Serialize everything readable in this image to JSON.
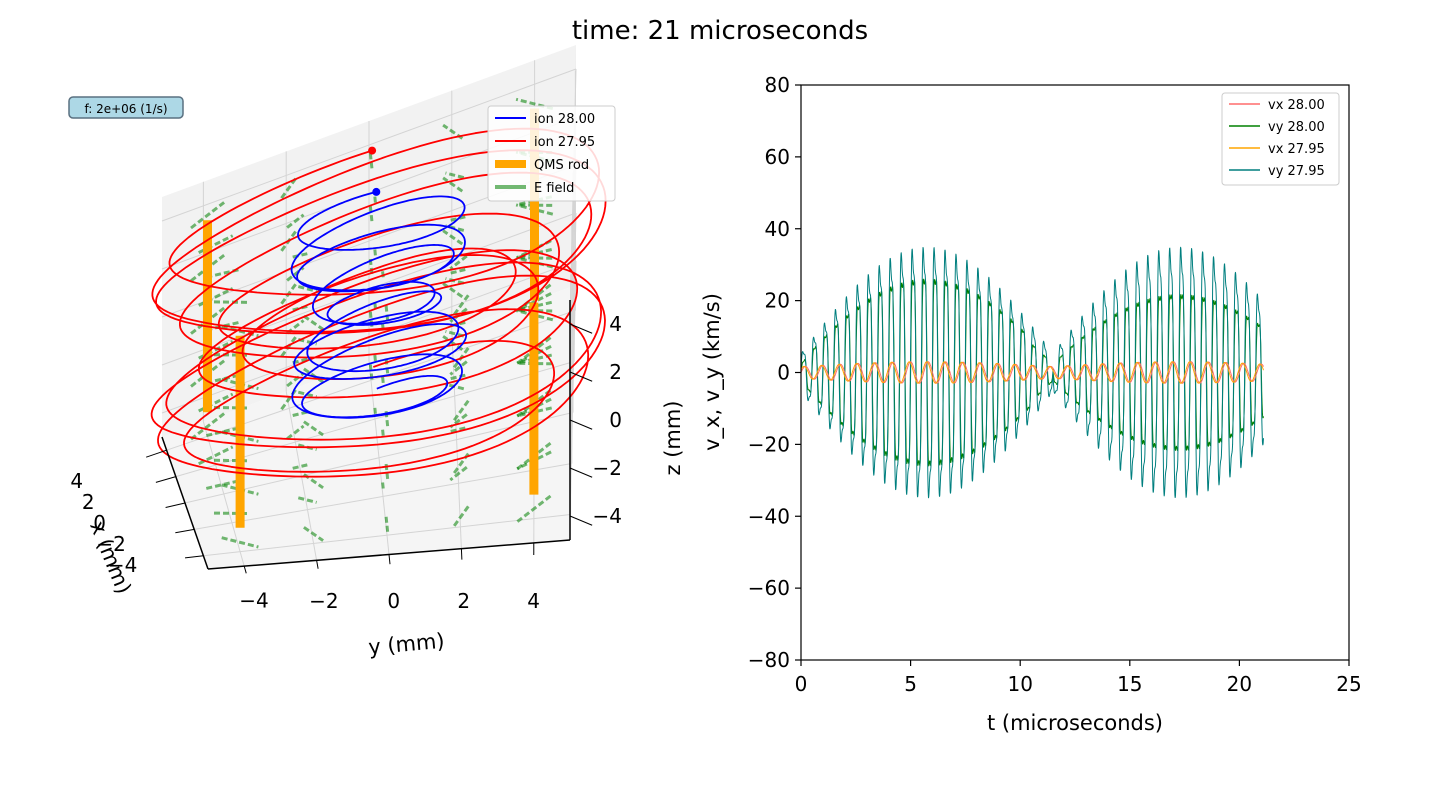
{
  "figure": {
    "title": "time: 21 microseconds",
    "info_box": "f: 2e+06 (1/s)"
  },
  "chart_data": [
    {
      "type": "line",
      "projection": "3d",
      "xlabel": "x (mm)",
      "ylabel": "y (mm)",
      "zlabel": "z (mm)",
      "xlim": [
        -5,
        5
      ],
      "ylim": [
        -5,
        5
      ],
      "zlim": [
        -5,
        5
      ],
      "xticks": [
        "−4",
        "−2",
        "0",
        "2",
        "4"
      ],
      "yticks": [
        "−4",
        "−2",
        "0",
        "2",
        "4"
      ],
      "zticks": [
        "−4",
        "−2",
        "0",
        "2",
        "4"
      ],
      "grid": true,
      "legend_position": "top-right",
      "legend": [
        {
          "label": "ion 28.00",
          "color": "#0000ff",
          "style": "line"
        },
        {
          "label": "ion 27.95",
          "color": "#ff0000",
          "style": "line"
        },
        {
          "label": "QMS rod",
          "color": "#ffa500",
          "style": "thick"
        },
        {
          "label": "E field",
          "color": "#008000",
          "style": "faded"
        }
      ],
      "rods": [
        {
          "x": -4,
          "y": -4,
          "z": [
            -4,
            4
          ]
        },
        {
          "x": 4,
          "y": -4,
          "z": [
            -4,
            4
          ]
        },
        {
          "x": -4,
          "y": 4,
          "z": [
            -4,
            4
          ]
        },
        {
          "x": 4,
          "y": 4,
          "z": [
            -4,
            4
          ]
        }
      ],
      "series": [
        {
          "name": "ion 28.00",
          "color": "#0000ff",
          "z_range": [
            -3,
            5
          ],
          "turns": 9,
          "amplitude_mm": [
            2.5,
            1.5
          ]
        },
        {
          "name": "ion 27.95",
          "color": "#ff0000",
          "z_range": [
            -3.5,
            5
          ],
          "turns": 11,
          "amplitude_mm": [
            6.5,
            1.2
          ]
        }
      ]
    },
    {
      "type": "line",
      "xlabel": "t (microseconds)",
      "ylabel": "v_x, v_y (km/s)",
      "xlim": [
        0,
        25
      ],
      "ylim": [
        -80,
        80
      ],
      "xticks": [
        "0",
        "5",
        "10",
        "15",
        "20",
        "25"
      ],
      "yticks": [
        "80",
        "60",
        "40",
        "20",
        "0",
        "−20",
        "−40",
        "−60",
        "−80"
      ],
      "grid": false,
      "legend_position": "top-right",
      "t_end": 21.1,
      "series": [
        {
          "name": "vx 28.00",
          "color": "#ff6b6b",
          "amplitude": 3,
          "beat_period": 11.5,
          "osc_period": 0.5
        },
        {
          "name": "vy 28.00",
          "color": "#008000",
          "amplitude": 30,
          "beat_period": 11.5,
          "osc_period": 0.5
        },
        {
          "name": "vx 27.95",
          "color": "#ffa500",
          "amplitude": 3,
          "beat_period": 11.5,
          "osc_period": 0.5
        },
        {
          "name": "vy 27.95",
          "color": "#007f7f",
          "amplitude": 36,
          "beat_period": 11.5,
          "osc_period": 0.5
        }
      ]
    }
  ]
}
